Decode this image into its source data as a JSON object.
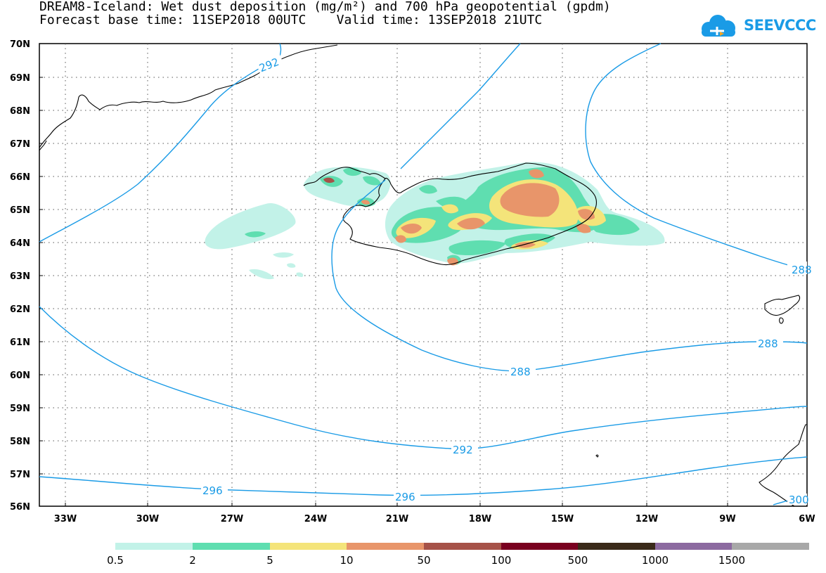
{
  "header": {
    "title_line1": "DREAM8-Iceland: Wet dust deposition (mg/m²) and 700 hPa geopotential (gpdm)",
    "title_line2": "Forecast base time: 11SEP2018 00UTC    Valid time: 13SEP2018 21UTC"
  },
  "logo": {
    "text": "SEEVCCC",
    "icon": "cloud-icon",
    "color": "#1a9be6"
  },
  "map": {
    "lat_labels": [
      "70N",
      "69N",
      "68N",
      "67N",
      "66N",
      "65N",
      "64N",
      "63N",
      "62N",
      "61N",
      "60N",
      "59N",
      "58N",
      "57N",
      "56N"
    ],
    "lon_labels": [
      "33W",
      "30W",
      "27W",
      "24W",
      "21W",
      "18W",
      "15W",
      "12W",
      "9W",
      "6W"
    ],
    "contour_color": "#1a9be6",
    "contour_labels": [
      "292",
      "288",
      "288",
      "288",
      "292",
      "296",
      "296",
      "300"
    ]
  },
  "colorbar": {
    "labels": [
      "0.5",
      "2",
      "5",
      "10",
      "50",
      "100",
      "500",
      "1000",
      "1500"
    ],
    "colors": [
      "#c2f2e8",
      "#5fdeb0",
      "#f4e47a",
      "#e8956a",
      "#a65248",
      "#7a0020",
      "#3a2a1a",
      "#8c6aa0",
      "#a8a8a8"
    ]
  }
}
